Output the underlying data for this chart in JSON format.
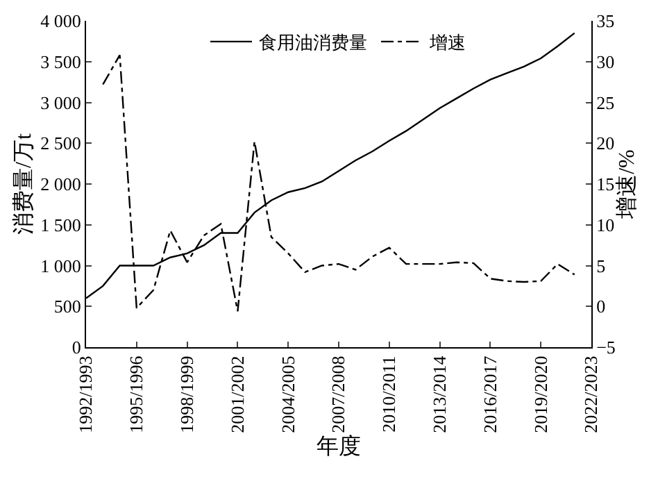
{
  "chart_data": {
    "type": "line",
    "xlabel": "年度",
    "ylabel": "消费量/万t",
    "y2label": "增速/%",
    "categories": [
      "1992/1993",
      null,
      null,
      "1995/1996",
      null,
      null,
      "1998/1999",
      null,
      null,
      "2001/2002",
      null,
      null,
      "2004/2005",
      null,
      null,
      "2007/2008",
      null,
      null,
      "2010/2011",
      null,
      null,
      "2013/2014",
      null,
      null,
      "2016/2017",
      null,
      null,
      "2019/2020",
      null,
      null,
      "2022/2023"
    ],
    "series": [
      {
        "name": "食用油消费量",
        "color": "#000000",
        "line_style": "solid",
        "values": [
          600,
          750,
          1000,
          1000,
          1000,
          1100,
          1150,
          1250,
          1400,
          1400,
          1650,
          1800,
          1900,
          1950,
          2030,
          2160,
          2290,
          2400,
          2530,
          2650,
          2790,
          2930,
          3050,
          3170,
          3280,
          3360,
          3440,
          3540,
          3690,
          3850,
          null
        ]
      },
      {
        "name": "增速",
        "color": "#000000",
        "line_style": "dashdot",
        "axis": "y2",
        "values": [
          null,
          27.2,
          30.8,
          -0.2,
          2.0,
          9.3,
          5.4,
          8.7,
          10.1,
          -0.6,
          20.2,
          8.5,
          6.5,
          4.2,
          5.0,
          5.2,
          4.5,
          6.1,
          7.2,
          5.2,
          5.2,
          5.2,
          5.4,
          5.3,
          3.4,
          3.1,
          3.0,
          3.1,
          5.2,
          3.9,
          null
        ]
      }
    ],
    "ylim": [
      0,
      4000
    ],
    "yticks": [
      0,
      {
        "value": 500,
        "label": "500"
      },
      {
        "value": 1000,
        "label": "1 000"
      },
      {
        "value": 1500,
        "label": "1 500"
      },
      {
        "value": 2000,
        "label": "2 000"
      },
      {
        "value": 2500,
        "label": "2 500"
      },
      {
        "value": 3000,
        "label": "3 000"
      },
      {
        "value": 3500,
        "label": "3 500"
      },
      {
        "value": 4000,
        "label": "4 000"
      }
    ],
    "y2lim": [
      -5,
      35
    ],
    "y2ticks": [
      -5,
      0,
      5,
      10,
      15,
      20,
      25,
      30,
      35
    ],
    "legend": "top",
    "marker": "none"
  }
}
